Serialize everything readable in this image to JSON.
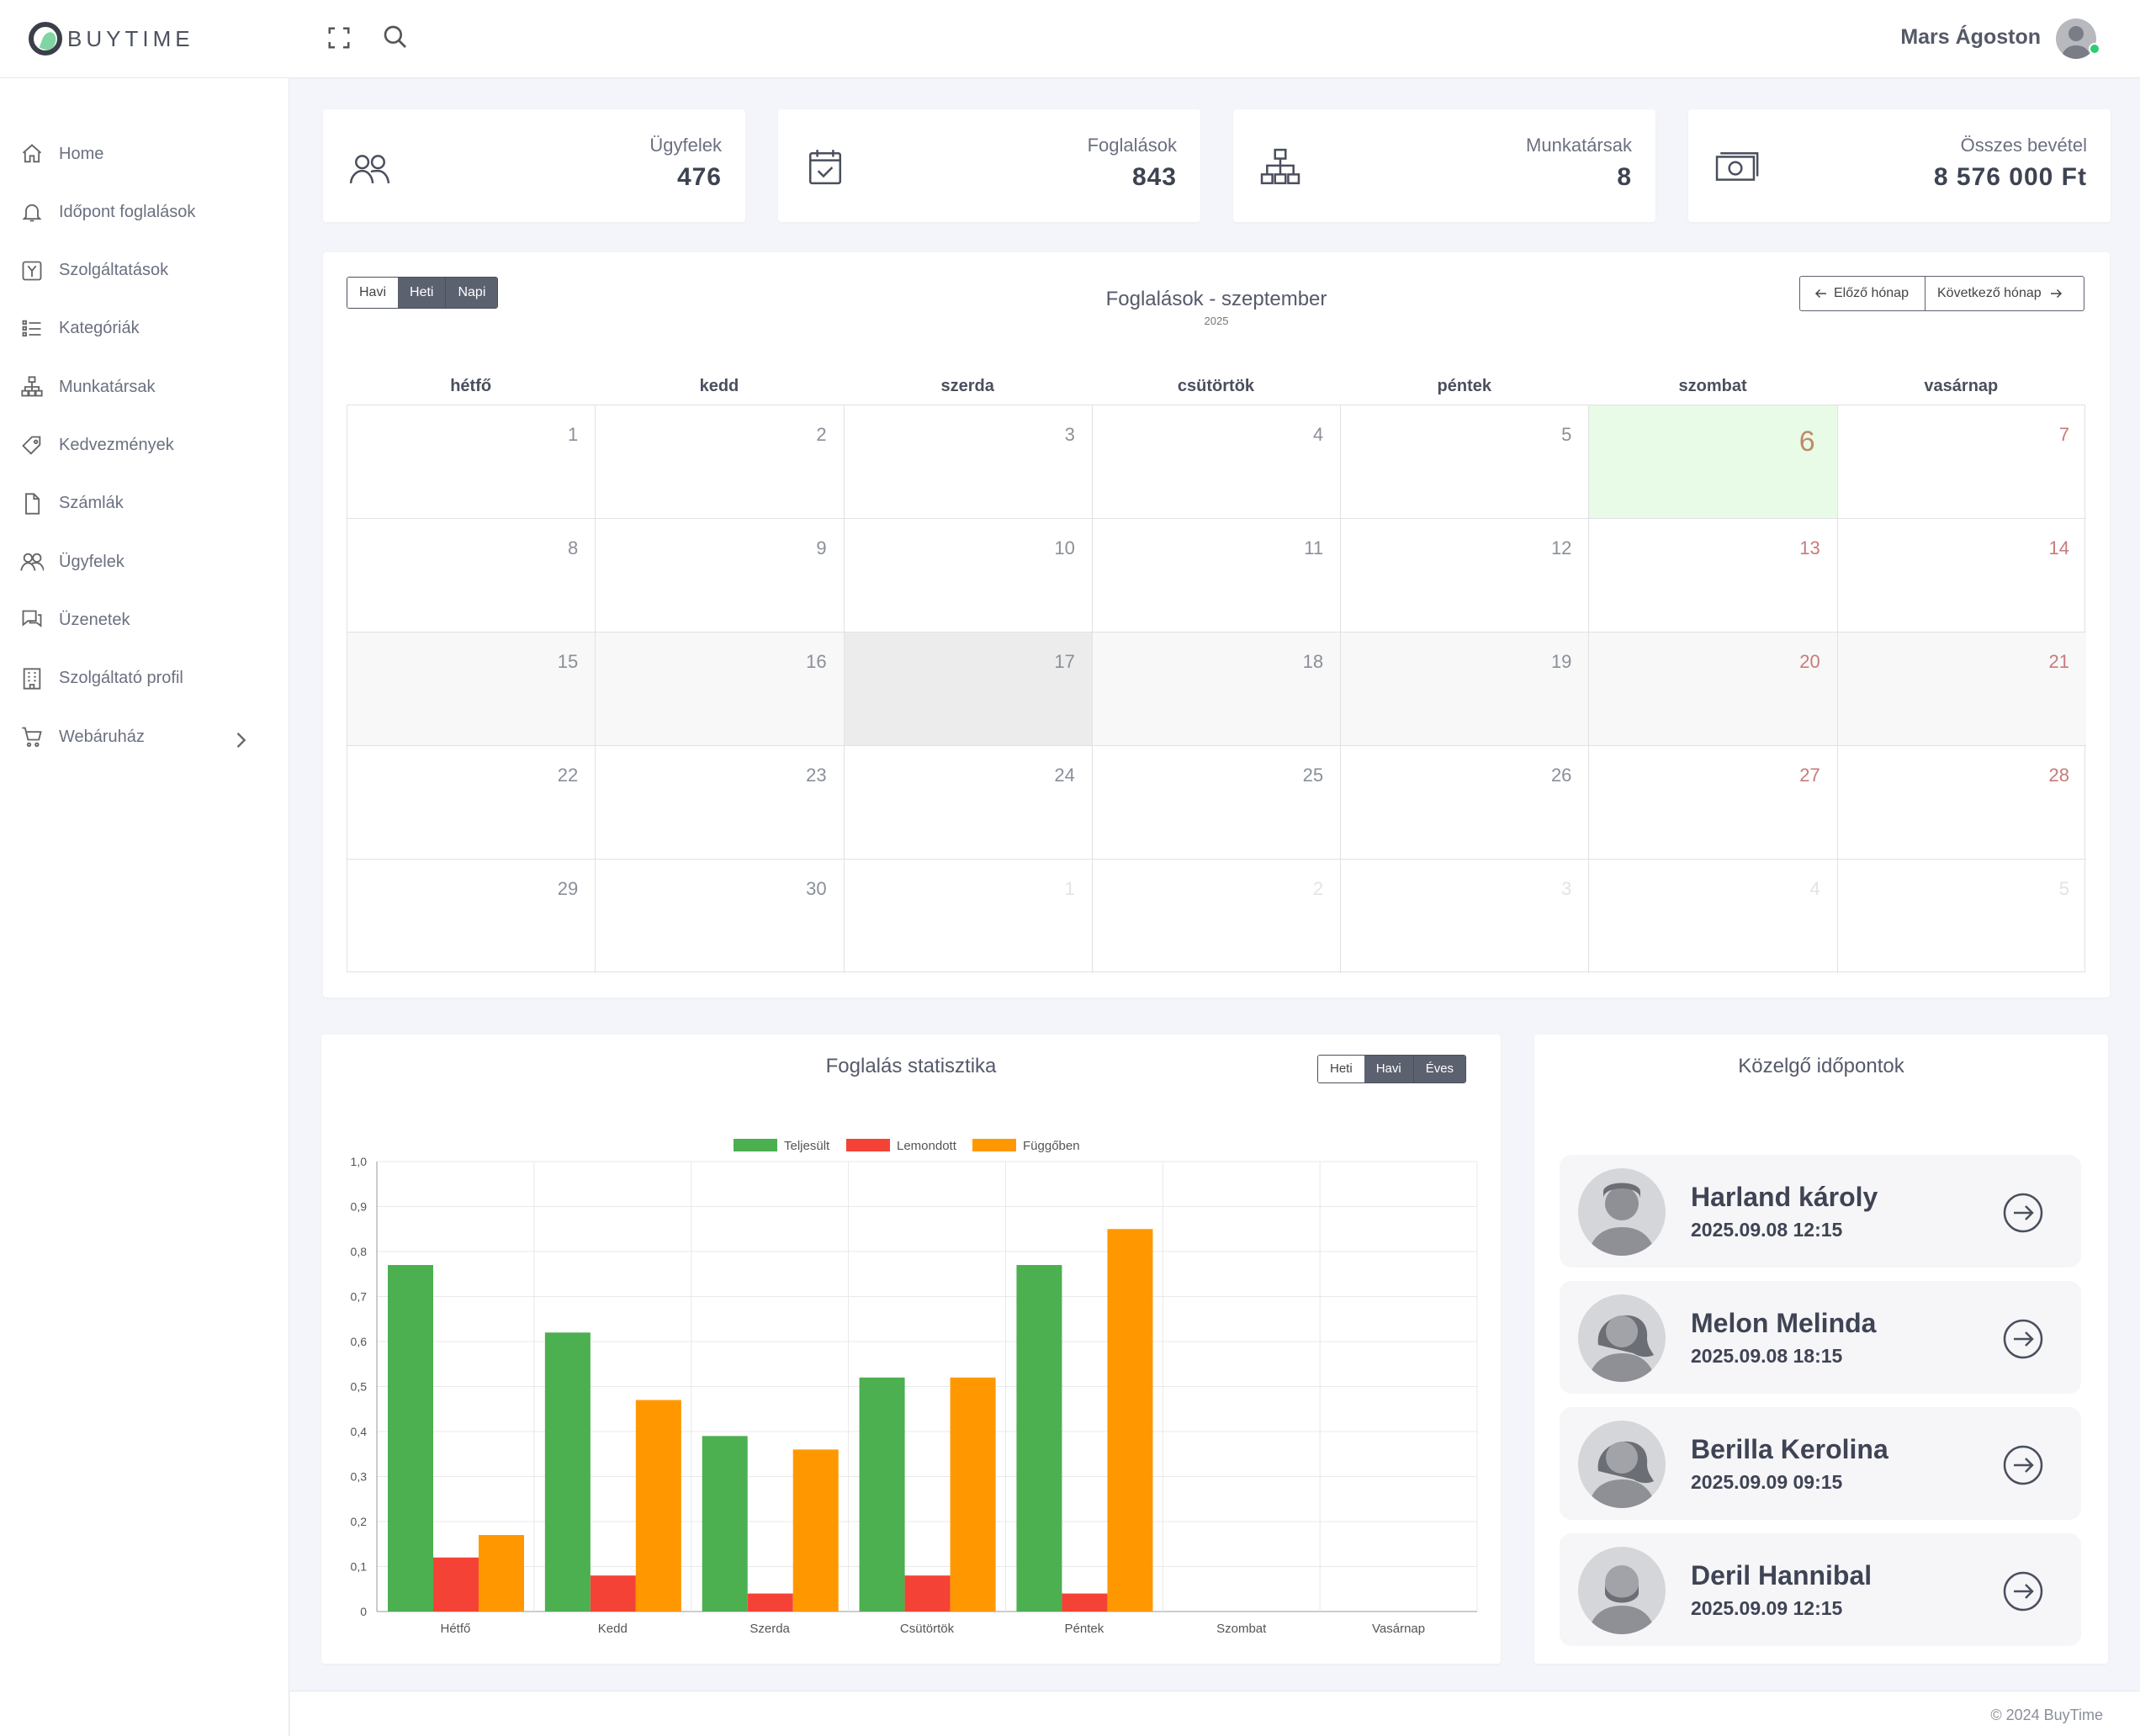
{
  "brand": {
    "name": "BUYTIME"
  },
  "header": {
    "username": "Mars Ágoston"
  },
  "sidebar": {
    "items": [
      {
        "label": "Home",
        "icon": "home-icon"
      },
      {
        "label": "Időpont foglalások",
        "icon": "bell-icon"
      },
      {
        "label": "Szolgáltatások",
        "icon": "service-icon"
      },
      {
        "label": "Kategóriák",
        "icon": "list-icon"
      },
      {
        "label": "Munkatársak",
        "icon": "org-chart-icon"
      },
      {
        "label": "Kedvezmények",
        "icon": "tag-icon"
      },
      {
        "label": "Számlák",
        "icon": "file-icon"
      },
      {
        "label": "Ügyfelek",
        "icon": "users-icon"
      },
      {
        "label": "Üzenetek",
        "icon": "messages-icon"
      },
      {
        "label": "Szolgáltató profil",
        "icon": "building-icon"
      },
      {
        "label": "Webáruház",
        "icon": "cart-icon"
      }
    ]
  },
  "stats": [
    {
      "label": "Ügyfelek",
      "value": "476",
      "icon": "users-icon"
    },
    {
      "label": "Foglalások",
      "value": "843",
      "icon": "calendar-check-icon"
    },
    {
      "label": "Munkatársak",
      "value": "8",
      "icon": "org-chart-icon"
    },
    {
      "label": "Összes bevétel",
      "value": "8 576 000 Ft",
      "icon": "money-icon"
    }
  ],
  "calendar": {
    "view_buttons": [
      "Havi",
      "Heti",
      "Napi"
    ],
    "title": "Foglalások - szeptember",
    "year": "2025",
    "prev_label": "Előző hónap",
    "next_label": "Következő hónap",
    "weekdays": [
      "hétfő",
      "kedd",
      "szerda",
      "csütörtök",
      "péntek",
      "szombat",
      "vasárnap"
    ],
    "weeks": [
      [
        "1",
        "2",
        "3",
        "4",
        "5",
        "6",
        "7"
      ],
      [
        "8",
        "9",
        "10",
        "11",
        "12",
        "13",
        "14"
      ],
      [
        "15",
        "16",
        "17",
        "18",
        "19",
        "20",
        "21"
      ],
      [
        "22",
        "23",
        "24",
        "25",
        "26",
        "27",
        "28"
      ],
      [
        "29",
        "30",
        "1",
        "2",
        "3",
        "4",
        "5"
      ]
    ],
    "today": "6",
    "colors": {
      "today_bg": "#e8fbe6",
      "weekend_text": "#c97a7a",
      "selected_bg": "#ececec",
      "week_bg": "#f8f8f8"
    }
  },
  "stats_panel": {
    "title": "Foglalás statisztika",
    "range_buttons": [
      "Heti",
      "Havi",
      "Éves"
    ]
  },
  "chart_data": {
    "type": "bar",
    "categories": [
      "Hétfő",
      "Kedd",
      "Szerda",
      "Csütörtök",
      "Péntek",
      "Szombat",
      "Vasárnap"
    ],
    "series": [
      {
        "name": "Teljesült",
        "color": "#4caf50",
        "values": [
          0.77,
          0.62,
          0.39,
          0.52,
          0.77,
          0,
          0
        ]
      },
      {
        "name": "Lemondott",
        "color": "#f44336",
        "values": [
          0.12,
          0.08,
          0.04,
          0.08,
          0.04,
          0,
          0
        ]
      },
      {
        "name": "Függőben",
        "color": "#ff9800",
        "values": [
          0.17,
          0.47,
          0.36,
          0.52,
          0.85,
          0,
          0
        ]
      }
    ],
    "yticks": [
      "0",
      "0,1",
      "0,2",
      "0,3",
      "0,4",
      "0,5",
      "0,6",
      "0,7",
      "0,8",
      "0,9",
      "1,0"
    ],
    "ylim": [
      0,
      1
    ],
    "grid": true,
    "legend": "top"
  },
  "upcoming": {
    "title": "Közelgő időpontok",
    "items": [
      {
        "name": "Harland károly",
        "time": "2025.09.08 12:15",
        "avatar": "male-avatar-icon"
      },
      {
        "name": "Melon Melinda",
        "time": "2025.09.08 18:15",
        "avatar": "female-avatar-icon"
      },
      {
        "name": "Berilla Kerolina",
        "time": "2025.09.09 09:15",
        "avatar": "female-avatar-icon"
      },
      {
        "name": "Deril Hannibal",
        "time": "2025.09.09 12:15",
        "avatar": "bearded-avatar-icon"
      }
    ]
  },
  "footer": {
    "text": "© 2024 BuyTime"
  }
}
